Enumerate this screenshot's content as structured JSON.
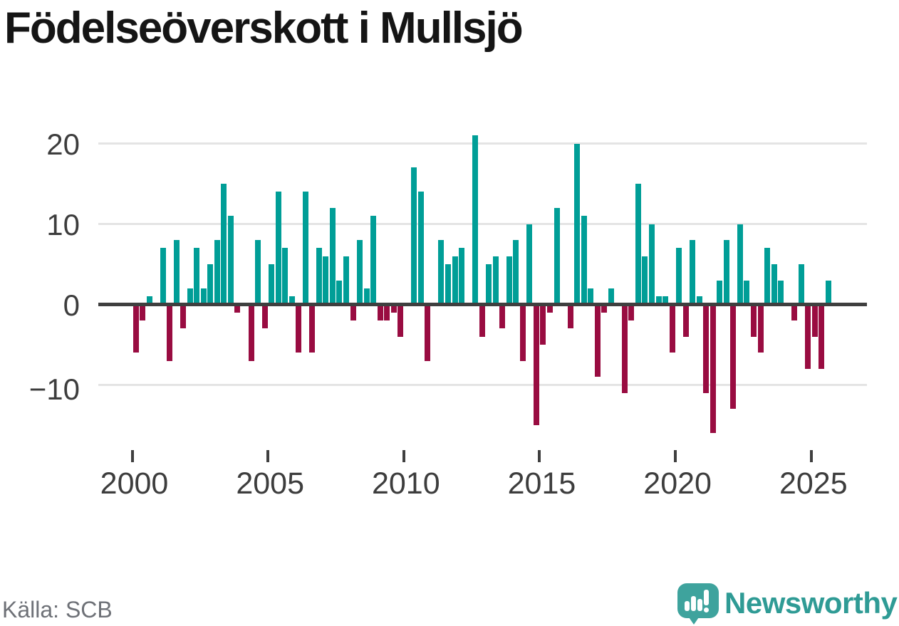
{
  "title": "Födelseöverskott i Mullsjö",
  "source_note": "Källa: SCB",
  "branding": {
    "logo_text": "Newsworthy",
    "logo_icon": "speech-bubble-with-bar-chart-and-exclamation"
  },
  "colors": {
    "positive_bar": "#009e97",
    "negative_bar": "#990c41",
    "axis_line": "#3f3f3f",
    "gridline": "#e4e4e4",
    "axis_label": "#3d3d3d",
    "title_text": "#151515",
    "source_text": "#6e7177",
    "brand_text": "#2f9b95",
    "brand_bubble": "#3ea39d"
  },
  "chart_data": {
    "type": "bar",
    "title": "Födelseöverskott i Mullsjö",
    "xlabel": "",
    "ylabel": "",
    "grid": true,
    "legend": false,
    "y_ticks": [
      20,
      10,
      0,
      -10
    ],
    "y_tick_labels": [
      "20",
      "10",
      "0",
      "−10"
    ],
    "ylim": [
      -17,
      21.5
    ],
    "x_tick_years": [
      2000,
      2005,
      2010,
      2015,
      2020,
      2025
    ],
    "x_tick_labels": [
      "2000",
      "2005",
      "2010",
      "2015",
      "2020",
      "2025"
    ],
    "categories": [
      "2000 Q1",
      "2000 Q2",
      "2000 Q3",
      "2000 Q4",
      "2001 Q1",
      "2001 Q2",
      "2001 Q3",
      "2001 Q4",
      "2002 Q1",
      "2002 Q2",
      "2002 Q3",
      "2002 Q4",
      "2003 Q1",
      "2003 Q2",
      "2003 Q3",
      "2003 Q4",
      "2004 Q1",
      "2004 Q2",
      "2004 Q3",
      "2004 Q4",
      "2005 Q1",
      "2005 Q2",
      "2005 Q3",
      "2005 Q4",
      "2006 Q1",
      "2006 Q2",
      "2006 Q3",
      "2006 Q4",
      "2007 Q1",
      "2007 Q2",
      "2007 Q3",
      "2007 Q4",
      "2008 Q1",
      "2008 Q2",
      "2008 Q3",
      "2008 Q4",
      "2009 Q1",
      "2009 Q2",
      "2009 Q3",
      "2009 Q4",
      "2010 Q1",
      "2010 Q2",
      "2010 Q3",
      "2010 Q4",
      "2011 Q1",
      "2011 Q2",
      "2011 Q3",
      "2011 Q4",
      "2012 Q1",
      "2012 Q2",
      "2012 Q3",
      "2012 Q4",
      "2013 Q1",
      "2013 Q2",
      "2013 Q3",
      "2013 Q4",
      "2014 Q1",
      "2014 Q2",
      "2014 Q3",
      "2014 Q4",
      "2015 Q1",
      "2015 Q2",
      "2015 Q3",
      "2015 Q4",
      "2016 Q1",
      "2016 Q2",
      "2016 Q3",
      "2016 Q4",
      "2017 Q1",
      "2017 Q2",
      "2017 Q3",
      "2017 Q4",
      "2018 Q1",
      "2018 Q2",
      "2018 Q3",
      "2018 Q4",
      "2019 Q1",
      "2019 Q2",
      "2019 Q3",
      "2019 Q4",
      "2020 Q1",
      "2020 Q2",
      "2020 Q3",
      "2020 Q4",
      "2021 Q1",
      "2021 Q2",
      "2021 Q3",
      "2021 Q4",
      "2022 Q1",
      "2022 Q2",
      "2022 Q3",
      "2022 Q4",
      "2023 Q1",
      "2023 Q2",
      "2023 Q3",
      "2023 Q4",
      "2024 Q1",
      "2024 Q2",
      "2024 Q3",
      "2024 Q4",
      "2025 Q1",
      "2025 Q2",
      "2025 Q3"
    ],
    "values": [
      -6,
      -2,
      1,
      0,
      7,
      -7,
      8,
      -3,
      2,
      7,
      2,
      5,
      8,
      15,
      11,
      -1,
      0,
      -7,
      8,
      -3,
      5,
      14,
      7,
      1,
      -6,
      14,
      -6,
      7,
      6,
      12,
      3,
      6,
      -2,
      8,
      2,
      11,
      -2,
      -2,
      -1,
      -4,
      0,
      17,
      14,
      -7,
      0,
      8,
      5,
      6,
      7,
      0,
      21,
      -4,
      5,
      6,
      -3,
      6,
      8,
      -7,
      10,
      -15,
      -5,
      -1,
      12,
      0,
      -3,
      20,
      11,
      2,
      -9,
      -1,
      2,
      0,
      -11,
      -2,
      15,
      6,
      10,
      1,
      1,
      -6,
      7,
      -4,
      8,
      1,
      -11,
      -16,
      3,
      8,
      -13,
      10,
      3,
      -4,
      -6,
      7,
      5,
      3,
      0,
      -2,
      5,
      -8,
      -4,
      -8,
      3
    ]
  }
}
